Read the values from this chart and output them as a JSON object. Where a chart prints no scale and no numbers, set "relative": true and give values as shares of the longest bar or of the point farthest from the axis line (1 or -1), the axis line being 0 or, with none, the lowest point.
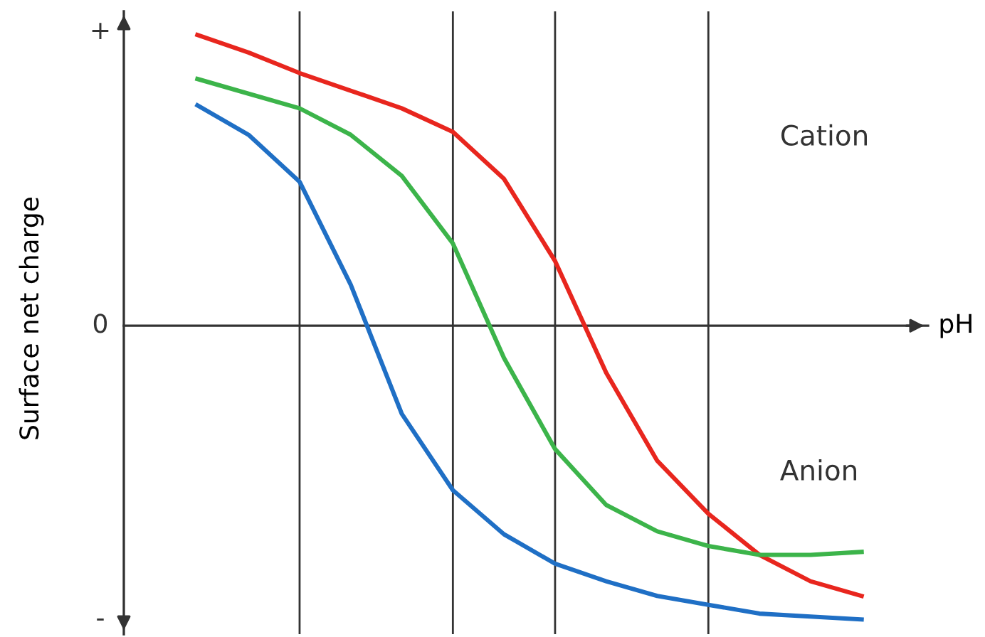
{
  "chart_data": {
    "type": "line",
    "relative": true,
    "ylabel": "Surface net charge",
    "xlabel": "pH",
    "categories": [
      null,
      null,
      null,
      null,
      null,
      null,
      null,
      null,
      null,
      null,
      null,
      null,
      null,
      null,
      null
    ],
    "grid": "x",
    "marker": "none",
    "line_style": "solid",
    "annotations": [
      "+",
      "0",
      "-",
      "Cation",
      "Anion"
    ],
    "series": [
      {
        "color": "#e8261e",
        "values": [
          null,
          0.99,
          0.93,
          0.86,
          0.8,
          0.74,
          0.66,
          0.5,
          0.22,
          -0.16,
          -0.46,
          -0.64,
          -0.78,
          -0.87,
          -0.92
        ]
      },
      {
        "color": "#3cb44a",
        "values": [
          null,
          0.84,
          0.79,
          0.74,
          0.65,
          0.51,
          0.28,
          -0.11,
          -0.42,
          -0.61,
          -0.7,
          -0.75,
          -0.78,
          -0.78,
          -0.77
        ]
      },
      {
        "color": "#1f6fc5",
        "values": [
          null,
          0.75,
          0.65,
          0.49,
          0.14,
          -0.3,
          -0.56,
          -0.71,
          -0.81,
          -0.87,
          -0.92,
          -0.95,
          -0.98,
          -0.99,
          -1.0
        ]
      }
    ]
  }
}
